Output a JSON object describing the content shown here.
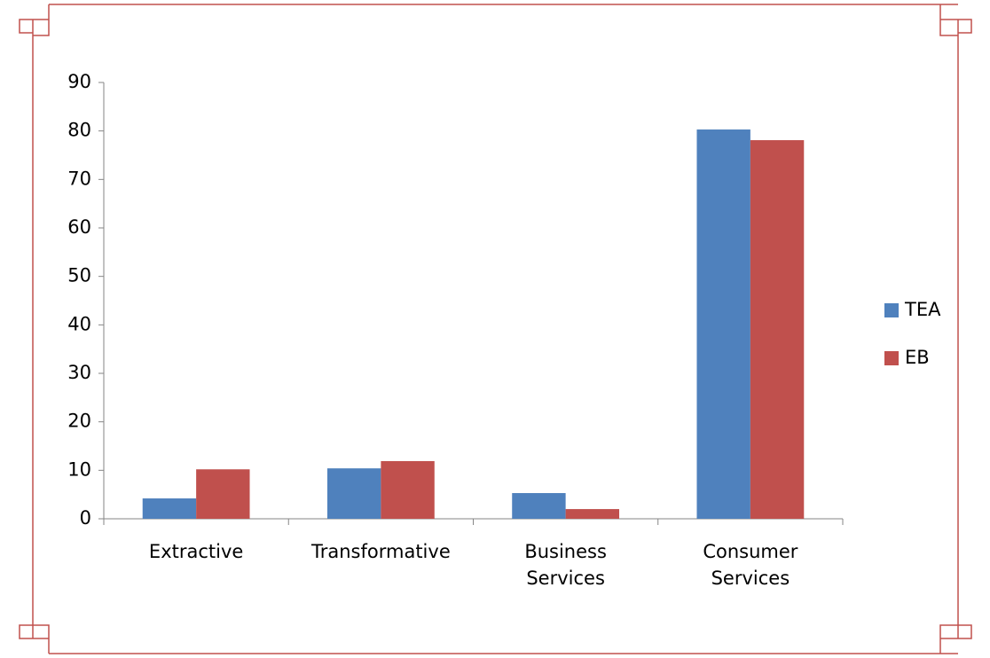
{
  "chart_data": {
    "type": "bar",
    "categories": [
      "Extractive",
      "Transformative",
      "Business Services",
      "Consumer Services"
    ],
    "series": [
      {
        "name": "TEA",
        "color": "#4f81bd",
        "values": [
          4.2,
          10.4,
          5.3,
          80.3
        ]
      },
      {
        "name": "EB",
        "color": "#c0504d",
        "values": [
          10.2,
          11.9,
          2.0,
          78.1
        ]
      }
    ],
    "ylim": [
      0,
      90
    ],
    "yticks": [
      0,
      10,
      20,
      30,
      40,
      50,
      60,
      70,
      80,
      90
    ],
    "grid": false,
    "legend": "right"
  }
}
